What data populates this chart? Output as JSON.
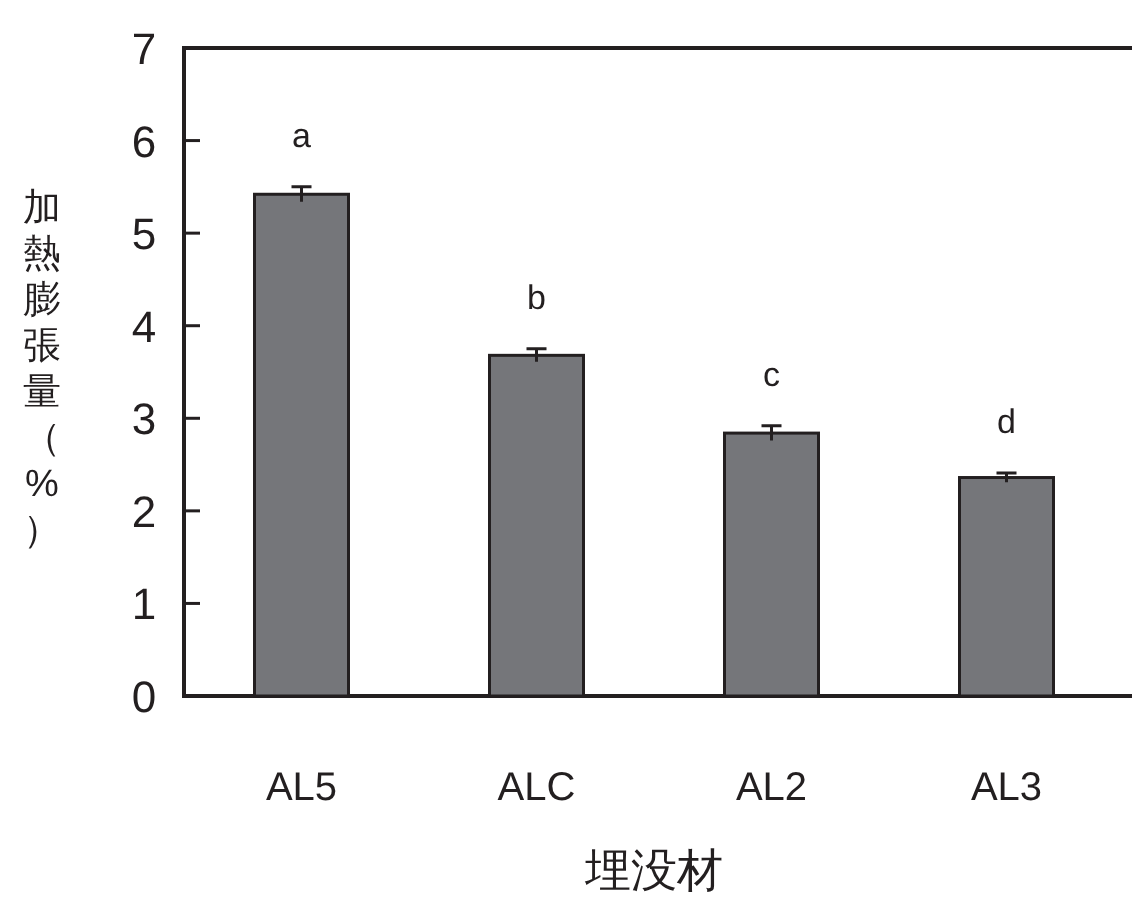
{
  "chart_data": {
    "type": "bar",
    "xlabel": "埋没材",
    "ylabel": "加熱膨張量（%）",
    "categories": [
      "AL5",
      "ALC",
      "AL2",
      "AL3"
    ],
    "values": [
      5.42,
      3.68,
      2.84,
      2.36
    ],
    "errors": [
      0.08,
      0.07,
      0.08,
      0.05
    ],
    "color": "#75767a",
    "ylim": [
      0,
      7
    ],
    "yticks": [
      0,
      1,
      2,
      3,
      4,
      5,
      6,
      7
    ],
    "annotations": [
      "a",
      "b",
      "c",
      "d"
    ]
  }
}
